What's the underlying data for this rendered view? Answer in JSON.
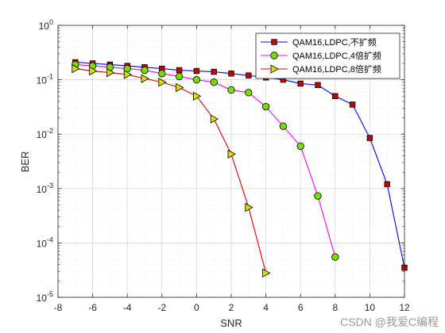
{
  "chart_data": {
    "type": "line",
    "xlabel": "SNR",
    "ylabel": "BER",
    "xlim": [
      -8,
      12
    ],
    "ylim": [
      1e-05,
      1
    ],
    "yscale": "log",
    "grid": true,
    "minor_grid": true,
    "legend_placement": "top-right",
    "x_ticks": [
      "-8",
      "-6",
      "-4",
      "-2",
      "0",
      "2",
      "4",
      "6",
      "8",
      "10",
      "12"
    ],
    "y_ticks": [
      {
        "base": "10",
        "exp": "-5"
      },
      {
        "base": "10",
        "exp": "-4"
      },
      {
        "base": "10",
        "exp": "-3"
      },
      {
        "base": "10",
        "exp": "-2"
      },
      {
        "base": "10",
        "exp": "-1"
      },
      {
        "base": "10",
        "exp": "0"
      }
    ],
    "series": [
      {
        "name": "QAM16,LDPC,不扩频",
        "color": "#0000ff",
        "marker": "square",
        "marker_color": "#cc0000",
        "x": [
          -7,
          -6,
          -5,
          -4,
          -3,
          -2,
          -1,
          0,
          1,
          2,
          3,
          4,
          5,
          6,
          7,
          8,
          9,
          10,
          11,
          12
        ],
        "y": [
          0.21,
          0.2,
          0.19,
          0.18,
          0.17,
          0.16,
          0.15,
          0.145,
          0.14,
          0.13,
          0.12,
          0.11,
          0.1,
          0.085,
          0.08,
          0.05,
          0.035,
          0.0085,
          0.0012,
          3.5e-05
        ]
      },
      {
        "name": "QAM16,LDPC,4倍扩频",
        "color": "#ff00ff",
        "marker": "circle",
        "marker_color": "#77dd00",
        "x": [
          -7,
          -6,
          -5,
          -4,
          -3,
          -2,
          -1,
          0,
          1,
          2,
          3,
          4,
          5,
          6,
          7,
          8
        ],
        "y": [
          0.19,
          0.18,
          0.17,
          0.16,
          0.15,
          0.13,
          0.115,
          0.1,
          0.09,
          0.065,
          0.058,
          0.032,
          0.014,
          0.006,
          0.00073,
          5.5e-05
        ]
      },
      {
        "name": "QAM16,LDPC,8倍扩频",
        "color": "#dd0000",
        "marker": "triangle-right",
        "marker_color": "#dddd00",
        "x": [
          -7,
          -6,
          -5,
          -4,
          -3,
          -2,
          -1,
          0,
          1,
          2,
          3,
          4
        ],
        "y": [
          0.16,
          0.145,
          0.135,
          0.125,
          0.105,
          0.09,
          0.072,
          0.05,
          0.019,
          0.0043,
          0.00045,
          2.8e-05
        ]
      }
    ]
  },
  "watermark": "CSDN @我爱C编程"
}
